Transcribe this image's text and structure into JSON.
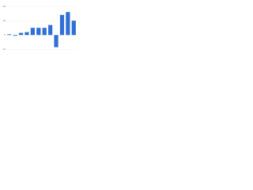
{
  "chart_data": {
    "type": "bar",
    "categories": [
      null,
      null,
      null,
      null,
      null,
      null,
      null,
      null,
      null,
      null,
      null,
      null
    ],
    "values": [
      0.5,
      -0.5,
      1.5,
      2,
      5,
      5,
      5,
      7,
      -8.5,
      14,
      16,
      10
    ],
    "color": "#2f6fd6",
    "ylim": [
      -12,
      20
    ],
    "yticks": [
      -10,
      0,
      10,
      20
    ],
    "grid": true
  }
}
